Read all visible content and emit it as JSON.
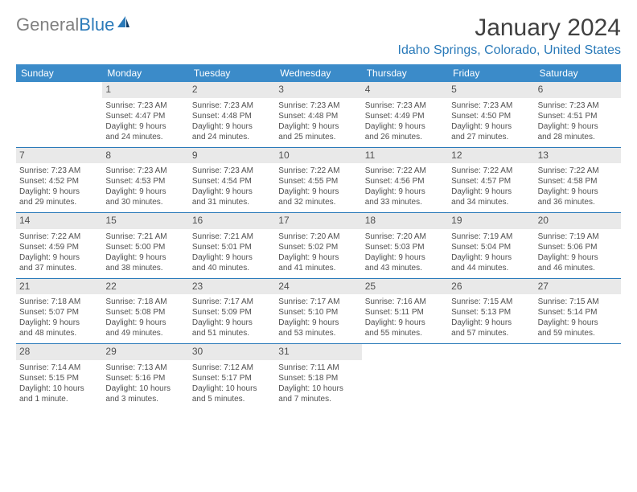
{
  "logo": {
    "text_gray": "General",
    "text_blue": "Blue"
  },
  "title": "January 2024",
  "location": "Idaho Springs, Colorado, United States",
  "day_headers": [
    "Sunday",
    "Monday",
    "Tuesday",
    "Wednesday",
    "Thursday",
    "Friday",
    "Saturday"
  ],
  "colors": {
    "header_bg": "#3b8bc9",
    "accent": "#2a7ab9",
    "daynum_bg": "#e9e9e9",
    "text": "#505050"
  },
  "weeks": [
    [
      {
        "n": "",
        "empty": true
      },
      {
        "n": "1",
        "sunrise": "Sunrise: 7:23 AM",
        "sunset": "Sunset: 4:47 PM",
        "day1": "Daylight: 9 hours",
        "day2": "and 24 minutes."
      },
      {
        "n": "2",
        "sunrise": "Sunrise: 7:23 AM",
        "sunset": "Sunset: 4:48 PM",
        "day1": "Daylight: 9 hours",
        "day2": "and 24 minutes."
      },
      {
        "n": "3",
        "sunrise": "Sunrise: 7:23 AM",
        "sunset": "Sunset: 4:48 PM",
        "day1": "Daylight: 9 hours",
        "day2": "and 25 minutes."
      },
      {
        "n": "4",
        "sunrise": "Sunrise: 7:23 AM",
        "sunset": "Sunset: 4:49 PM",
        "day1": "Daylight: 9 hours",
        "day2": "and 26 minutes."
      },
      {
        "n": "5",
        "sunrise": "Sunrise: 7:23 AM",
        "sunset": "Sunset: 4:50 PM",
        "day1": "Daylight: 9 hours",
        "day2": "and 27 minutes."
      },
      {
        "n": "6",
        "sunrise": "Sunrise: 7:23 AM",
        "sunset": "Sunset: 4:51 PM",
        "day1": "Daylight: 9 hours",
        "day2": "and 28 minutes."
      }
    ],
    [
      {
        "n": "7",
        "sunrise": "Sunrise: 7:23 AM",
        "sunset": "Sunset: 4:52 PM",
        "day1": "Daylight: 9 hours",
        "day2": "and 29 minutes."
      },
      {
        "n": "8",
        "sunrise": "Sunrise: 7:23 AM",
        "sunset": "Sunset: 4:53 PM",
        "day1": "Daylight: 9 hours",
        "day2": "and 30 minutes."
      },
      {
        "n": "9",
        "sunrise": "Sunrise: 7:23 AM",
        "sunset": "Sunset: 4:54 PM",
        "day1": "Daylight: 9 hours",
        "day2": "and 31 minutes."
      },
      {
        "n": "10",
        "sunrise": "Sunrise: 7:22 AM",
        "sunset": "Sunset: 4:55 PM",
        "day1": "Daylight: 9 hours",
        "day2": "and 32 minutes."
      },
      {
        "n": "11",
        "sunrise": "Sunrise: 7:22 AM",
        "sunset": "Sunset: 4:56 PM",
        "day1": "Daylight: 9 hours",
        "day2": "and 33 minutes."
      },
      {
        "n": "12",
        "sunrise": "Sunrise: 7:22 AM",
        "sunset": "Sunset: 4:57 PM",
        "day1": "Daylight: 9 hours",
        "day2": "and 34 minutes."
      },
      {
        "n": "13",
        "sunrise": "Sunrise: 7:22 AM",
        "sunset": "Sunset: 4:58 PM",
        "day1": "Daylight: 9 hours",
        "day2": "and 36 minutes."
      }
    ],
    [
      {
        "n": "14",
        "sunrise": "Sunrise: 7:22 AM",
        "sunset": "Sunset: 4:59 PM",
        "day1": "Daylight: 9 hours",
        "day2": "and 37 minutes."
      },
      {
        "n": "15",
        "sunrise": "Sunrise: 7:21 AM",
        "sunset": "Sunset: 5:00 PM",
        "day1": "Daylight: 9 hours",
        "day2": "and 38 minutes."
      },
      {
        "n": "16",
        "sunrise": "Sunrise: 7:21 AM",
        "sunset": "Sunset: 5:01 PM",
        "day1": "Daylight: 9 hours",
        "day2": "and 40 minutes."
      },
      {
        "n": "17",
        "sunrise": "Sunrise: 7:20 AM",
        "sunset": "Sunset: 5:02 PM",
        "day1": "Daylight: 9 hours",
        "day2": "and 41 minutes."
      },
      {
        "n": "18",
        "sunrise": "Sunrise: 7:20 AM",
        "sunset": "Sunset: 5:03 PM",
        "day1": "Daylight: 9 hours",
        "day2": "and 43 minutes."
      },
      {
        "n": "19",
        "sunrise": "Sunrise: 7:19 AM",
        "sunset": "Sunset: 5:04 PM",
        "day1": "Daylight: 9 hours",
        "day2": "and 44 minutes."
      },
      {
        "n": "20",
        "sunrise": "Sunrise: 7:19 AM",
        "sunset": "Sunset: 5:06 PM",
        "day1": "Daylight: 9 hours",
        "day2": "and 46 minutes."
      }
    ],
    [
      {
        "n": "21",
        "sunrise": "Sunrise: 7:18 AM",
        "sunset": "Sunset: 5:07 PM",
        "day1": "Daylight: 9 hours",
        "day2": "and 48 minutes."
      },
      {
        "n": "22",
        "sunrise": "Sunrise: 7:18 AM",
        "sunset": "Sunset: 5:08 PM",
        "day1": "Daylight: 9 hours",
        "day2": "and 49 minutes."
      },
      {
        "n": "23",
        "sunrise": "Sunrise: 7:17 AM",
        "sunset": "Sunset: 5:09 PM",
        "day1": "Daylight: 9 hours",
        "day2": "and 51 minutes."
      },
      {
        "n": "24",
        "sunrise": "Sunrise: 7:17 AM",
        "sunset": "Sunset: 5:10 PM",
        "day1": "Daylight: 9 hours",
        "day2": "and 53 minutes."
      },
      {
        "n": "25",
        "sunrise": "Sunrise: 7:16 AM",
        "sunset": "Sunset: 5:11 PM",
        "day1": "Daylight: 9 hours",
        "day2": "and 55 minutes."
      },
      {
        "n": "26",
        "sunrise": "Sunrise: 7:15 AM",
        "sunset": "Sunset: 5:13 PM",
        "day1": "Daylight: 9 hours",
        "day2": "and 57 minutes."
      },
      {
        "n": "27",
        "sunrise": "Sunrise: 7:15 AM",
        "sunset": "Sunset: 5:14 PM",
        "day1": "Daylight: 9 hours",
        "day2": "and 59 minutes."
      }
    ],
    [
      {
        "n": "28",
        "sunrise": "Sunrise: 7:14 AM",
        "sunset": "Sunset: 5:15 PM",
        "day1": "Daylight: 10 hours",
        "day2": "and 1 minute."
      },
      {
        "n": "29",
        "sunrise": "Sunrise: 7:13 AM",
        "sunset": "Sunset: 5:16 PM",
        "day1": "Daylight: 10 hours",
        "day2": "and 3 minutes."
      },
      {
        "n": "30",
        "sunrise": "Sunrise: 7:12 AM",
        "sunset": "Sunset: 5:17 PM",
        "day1": "Daylight: 10 hours",
        "day2": "and 5 minutes."
      },
      {
        "n": "31",
        "sunrise": "Sunrise: 7:11 AM",
        "sunset": "Sunset: 5:18 PM",
        "day1": "Daylight: 10 hours",
        "day2": "and 7 minutes."
      },
      {
        "n": "",
        "empty": true
      },
      {
        "n": "",
        "empty": true
      },
      {
        "n": "",
        "empty": true
      }
    ]
  ]
}
